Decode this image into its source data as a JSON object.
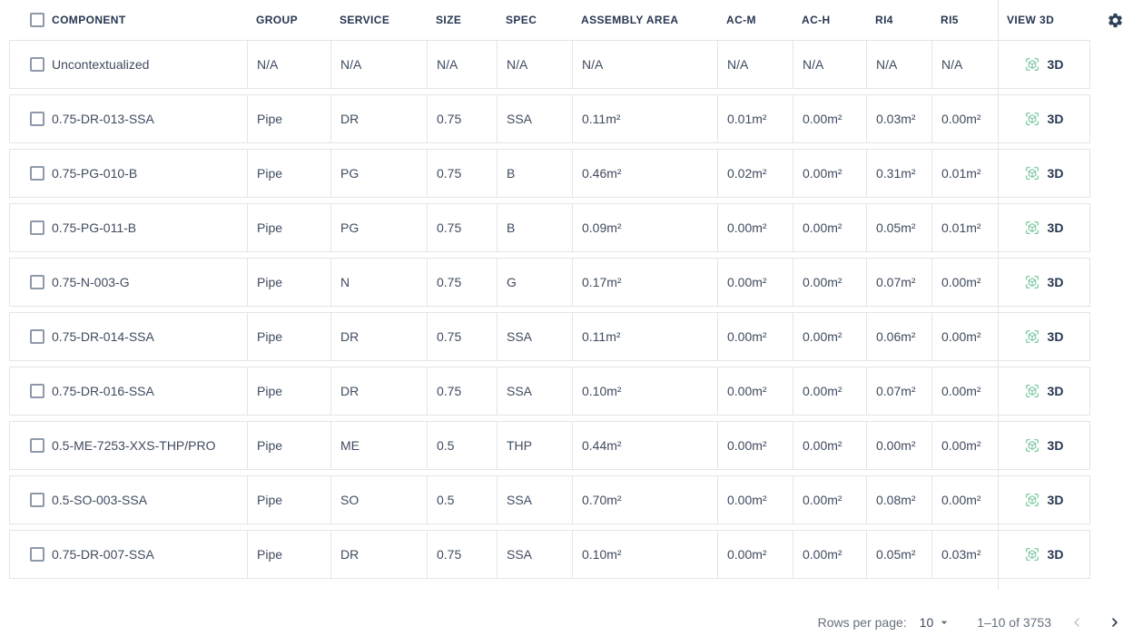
{
  "table": {
    "columns": [
      {
        "key": "component",
        "label": "COMPONENT"
      },
      {
        "key": "group",
        "label": "GROUP"
      },
      {
        "key": "service",
        "label": "SERVICE"
      },
      {
        "key": "size",
        "label": "SIZE"
      },
      {
        "key": "spec",
        "label": "SPEC"
      },
      {
        "key": "assembly_area",
        "label": "ASSEMBLY AREA"
      },
      {
        "key": "ac_m",
        "label": "AC-M"
      },
      {
        "key": "ac_h",
        "label": "AC-H"
      },
      {
        "key": "ri4",
        "label": "RI4"
      },
      {
        "key": "ri5",
        "label": "RI5"
      },
      {
        "key": "view3d",
        "label": "VIEW 3D"
      }
    ],
    "view3d_button_label": "3D",
    "rows": [
      {
        "component": "Uncontextualized",
        "group": "N/A",
        "service": "N/A",
        "size": "N/A",
        "spec": "N/A",
        "assembly_area": "N/A",
        "ac_m": "N/A",
        "ac_h": "N/A",
        "ri4": "N/A",
        "ri5": "N/A"
      },
      {
        "component": "0.75-DR-013-SSA",
        "group": "Pipe",
        "service": "DR",
        "size": "0.75",
        "spec": "SSA",
        "assembly_area": "0.11m²",
        "ac_m": "0.01m²",
        "ac_h": "0.00m²",
        "ri4": "0.03m²",
        "ri5": "0.00m²"
      },
      {
        "component": "0.75-PG-010-B",
        "group": "Pipe",
        "service": "PG",
        "size": "0.75",
        "spec": "B",
        "assembly_area": "0.46m²",
        "ac_m": "0.02m²",
        "ac_h": "0.00m²",
        "ri4": "0.31m²",
        "ri5": "0.01m²"
      },
      {
        "component": "0.75-PG-011-B",
        "group": "Pipe",
        "service": "PG",
        "size": "0.75",
        "spec": "B",
        "assembly_area": "0.09m²",
        "ac_m": "0.00m²",
        "ac_h": "0.00m²",
        "ri4": "0.05m²",
        "ri5": "0.01m²"
      },
      {
        "component": "0.75-N-003-G",
        "group": "Pipe",
        "service": "N",
        "size": "0.75",
        "spec": "G",
        "assembly_area": "0.17m²",
        "ac_m": "0.00m²",
        "ac_h": "0.00m²",
        "ri4": "0.07m²",
        "ri5": "0.00m²"
      },
      {
        "component": "0.75-DR-014-SSA",
        "group": "Pipe",
        "service": "DR",
        "size": "0.75",
        "spec": "SSA",
        "assembly_area": "0.11m²",
        "ac_m": "0.00m²",
        "ac_h": "0.00m²",
        "ri4": "0.06m²",
        "ri5": "0.00m²"
      },
      {
        "component": "0.75-DR-016-SSA",
        "group": "Pipe",
        "service": "DR",
        "size": "0.75",
        "spec": "SSA",
        "assembly_area": "0.10m²",
        "ac_m": "0.00m²",
        "ac_h": "0.00m²",
        "ri4": "0.07m²",
        "ri5": "0.00m²"
      },
      {
        "component": "0.5-ME-7253-XXS-THP/PRO",
        "group": "Pipe",
        "service": "ME",
        "size": "0.5",
        "spec": "THP",
        "assembly_area": "0.44m²",
        "ac_m": "0.00m²",
        "ac_h": "0.00m²",
        "ri4": "0.00m²",
        "ri5": "0.00m²"
      },
      {
        "component": "0.5-SO-003-SSA",
        "group": "Pipe",
        "service": "SO",
        "size": "0.5",
        "spec": "SSA",
        "assembly_area": "0.70m²",
        "ac_m": "0.00m²",
        "ac_h": "0.00m²",
        "ri4": "0.08m²",
        "ri5": "0.00m²"
      },
      {
        "component": "0.75-DR-007-SSA",
        "group": "Pipe",
        "service": "DR",
        "size": "0.75",
        "spec": "SSA",
        "assembly_area": "0.10m²",
        "ac_m": "0.00m²",
        "ac_h": "0.00m²",
        "ri4": "0.05m²",
        "ri5": "0.03m²"
      }
    ]
  },
  "icons": {
    "view3d": "3d-cube-focus",
    "settings": "gear"
  },
  "pagination": {
    "rows_per_page_label": "Rows per page:",
    "rows_per_page_value": "10",
    "range_label": "1–10 of 3753"
  },
  "colors": {
    "accent_green": "#7dc8a1",
    "header_text": "#273650",
    "cell_text": "#3f4b5f",
    "border": "#e3e5e8",
    "gear": "#2f4158",
    "muted_text": "#65707e",
    "disabled_arrow": "#c5cad1"
  }
}
